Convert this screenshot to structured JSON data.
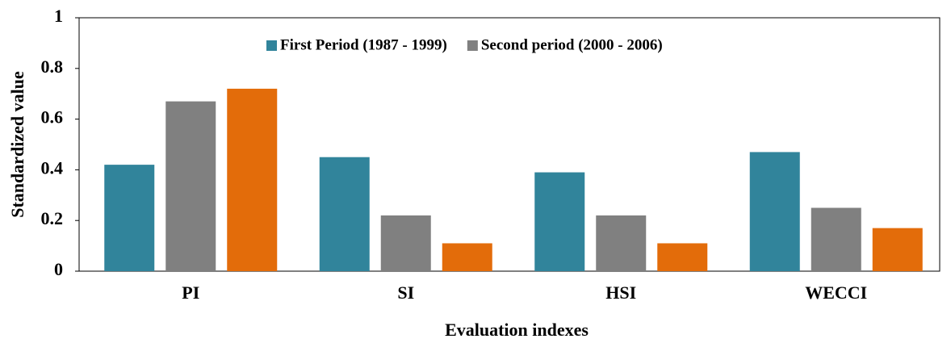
{
  "chart_data": {
    "type": "bar",
    "x_label": "Evaluation indexes",
    "y_label": "Standardized value",
    "categories": [
      "PI",
      "SI",
      "HSI",
      "WECCI"
    ],
    "series": [
      {
        "name": "First Period (1987 - 1999)",
        "color": "#31849b",
        "values": [
          0.42,
          0.45,
          0.39,
          0.47
        ]
      },
      {
        "name": "Second period (2000 - 2006)",
        "color": "#808080",
        "values": [
          0.67,
          0.22,
          0.22,
          0.25
        ]
      },
      {
        "color": "#e36c0a",
        "values": [
          0.72,
          0.11,
          0.11,
          0.17
        ]
      }
    ],
    "ylim": [
      0,
      1
    ],
    "yticks": [
      0,
      0.2,
      0.4,
      0.6,
      0.8,
      1
    ],
    "grid": false
  }
}
